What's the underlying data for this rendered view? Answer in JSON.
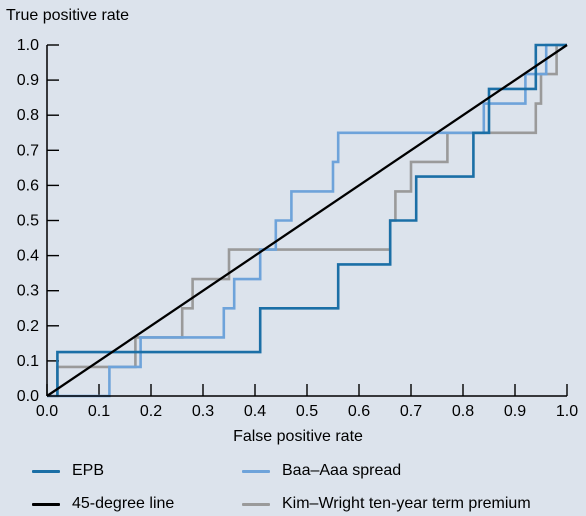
{
  "chart_data": {
    "type": "line",
    "title": "",
    "xlabel": "False positive rate",
    "ylabel": "True positive rate",
    "xlim": [
      0,
      1
    ],
    "ylim": [
      0,
      1
    ],
    "x_ticks": [
      0.0,
      0.1,
      0.2,
      0.3,
      0.4,
      0.5,
      0.6,
      0.7,
      0.8,
      0.9,
      1.0
    ],
    "y_ticks": [
      0.0,
      0.1,
      0.2,
      0.3,
      0.4,
      0.5,
      0.6,
      0.7,
      0.8,
      0.9,
      1.0
    ],
    "tick_labels": [
      "0.0",
      "0.1",
      "0.2",
      "0.3",
      "0.4",
      "0.5",
      "0.6",
      "0.7",
      "0.8",
      "0.9",
      "1.0"
    ],
    "grid": false,
    "legend_position": "bottom",
    "series": [
      {
        "name": "EPB",
        "color": "#1b6fa6",
        "points": [
          [
            0.02,
            0.0
          ],
          [
            0.02,
            0.125
          ],
          [
            0.41,
            0.125
          ],
          [
            0.41,
            0.25
          ],
          [
            0.56,
            0.25
          ],
          [
            0.56,
            0.375
          ],
          [
            0.66,
            0.375
          ],
          [
            0.66,
            0.5
          ],
          [
            0.71,
            0.5
          ],
          [
            0.71,
            0.625
          ],
          [
            0.82,
            0.625
          ],
          [
            0.82,
            0.75
          ],
          [
            0.85,
            0.75
          ],
          [
            0.85,
            0.875
          ],
          [
            0.94,
            0.875
          ],
          [
            0.94,
            1.0
          ],
          [
            1.0,
            1.0
          ]
        ]
      },
      {
        "name": "Baa–Aaa spread",
        "color": "#6ea3da",
        "points": [
          [
            0.0,
            0.0
          ],
          [
            0.12,
            0.0
          ],
          [
            0.12,
            0.083
          ],
          [
            0.18,
            0.083
          ],
          [
            0.18,
            0.167
          ],
          [
            0.34,
            0.167
          ],
          [
            0.34,
            0.25
          ],
          [
            0.36,
            0.25
          ],
          [
            0.36,
            0.333
          ],
          [
            0.41,
            0.333
          ],
          [
            0.41,
            0.417
          ],
          [
            0.44,
            0.417
          ],
          [
            0.44,
            0.5
          ],
          [
            0.47,
            0.5
          ],
          [
            0.47,
            0.583
          ],
          [
            0.55,
            0.583
          ],
          [
            0.55,
            0.667
          ],
          [
            0.56,
            0.667
          ],
          [
            0.56,
            0.75
          ],
          [
            0.84,
            0.75
          ],
          [
            0.84,
            0.833
          ],
          [
            0.92,
            0.833
          ],
          [
            0.92,
            0.917
          ],
          [
            0.96,
            0.917
          ],
          [
            0.96,
            1.0
          ],
          [
            1.0,
            1.0
          ]
        ]
      },
      {
        "name": "45-degree line",
        "color": "#000000",
        "points": [
          [
            0.0,
            0.0
          ],
          [
            1.0,
            1.0
          ]
        ]
      },
      {
        "name": "Kim–Wright ten-year term premium",
        "color": "#9a9a9a",
        "points": [
          [
            0.0,
            0.0
          ],
          [
            0.02,
            0.0
          ],
          [
            0.02,
            0.083
          ],
          [
            0.17,
            0.083
          ],
          [
            0.17,
            0.167
          ],
          [
            0.26,
            0.167
          ],
          [
            0.26,
            0.25
          ],
          [
            0.28,
            0.25
          ],
          [
            0.28,
            0.333
          ],
          [
            0.35,
            0.333
          ],
          [
            0.35,
            0.417
          ],
          [
            0.66,
            0.417
          ],
          [
            0.66,
            0.5
          ],
          [
            0.67,
            0.5
          ],
          [
            0.67,
            0.583
          ],
          [
            0.7,
            0.583
          ],
          [
            0.7,
            0.667
          ],
          [
            0.77,
            0.667
          ],
          [
            0.77,
            0.75
          ],
          [
            0.94,
            0.75
          ],
          [
            0.94,
            0.833
          ],
          [
            0.95,
            0.833
          ],
          [
            0.95,
            0.917
          ],
          [
            0.98,
            0.917
          ],
          [
            0.98,
            1.0
          ],
          [
            1.0,
            1.0
          ]
        ]
      }
    ]
  }
}
